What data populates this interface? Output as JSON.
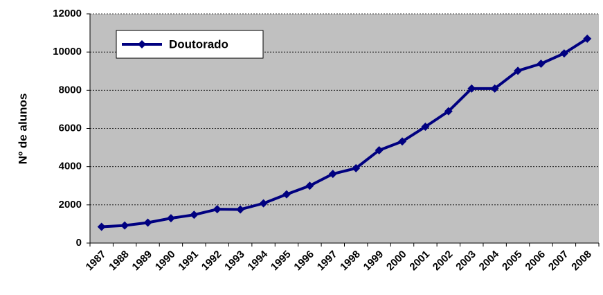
{
  "chart_data": {
    "type": "line",
    "y_label": "Nº de alunos",
    "categories": [
      "1987",
      "1988",
      "1989",
      "1990",
      "1991",
      "1992",
      "1993",
      "1994",
      "1995",
      "1996",
      "1997",
      "1998",
      "1999",
      "2000",
      "2001",
      "2002",
      "2003",
      "2004",
      "2005",
      "2006",
      "2007",
      "2008"
    ],
    "series": [
      {
        "name": "Doutorado",
        "color": "#000080",
        "values": [
          850,
          920,
          1070,
          1300,
          1480,
          1770,
          1760,
          2080,
          2550,
          3000,
          3620,
          3920,
          4860,
          5320,
          6090,
          6900,
          8090,
          8090,
          9020,
          9390,
          9930,
          10700
        ]
      }
    ],
    "ylim": [
      0,
      12000
    ],
    "yticks": [
      0,
      2000,
      4000,
      6000,
      8000,
      10000,
      12000
    ],
    "grid": true,
    "legend": "top-left"
  }
}
